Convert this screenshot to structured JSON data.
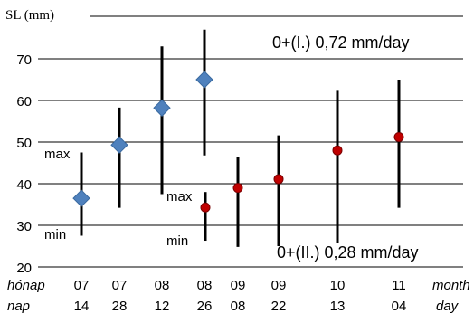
{
  "chart_data": {
    "type": "scatter",
    "ylabel": "SL (mm)",
    "ylim": [
      20,
      77
    ],
    "yticks": [
      20,
      30,
      40,
      50,
      60,
      70
    ],
    "grid": true,
    "x_row1_label": "hónap",
    "x_row2_label": "nap",
    "x_row1_unit": "month",
    "x_row2_unit": "day",
    "categories": [
      {
        "month": "07",
        "day": "14"
      },
      {
        "month": "07",
        "day": "28"
      },
      {
        "month": "08",
        "day": "12"
      },
      {
        "month": "08",
        "day": "26"
      },
      {
        "month": "09",
        "day": "08"
      },
      {
        "month": "09",
        "day": "22"
      },
      {
        "month": "10",
        "day": "13"
      },
      {
        "month": "11",
        "day": "04"
      }
    ],
    "series": [
      {
        "name": "0+(I.)  0,72 mm/day",
        "marker": "diamond",
        "color": "#4f81bd",
        "points": [
          {
            "x": "07/14",
            "y": 36.5,
            "min": 27.5,
            "max": 47.5
          },
          {
            "x": "07/28",
            "y": 49.3,
            "min": 34.2,
            "max": 58.3
          },
          {
            "x": "08/12",
            "y": 58.2,
            "min": 37.5,
            "max": 73.0
          },
          {
            "x": "08/26",
            "y": 65.0,
            "min": 46.8,
            "max": 77.0
          }
        ]
      },
      {
        "name": "0+(II.)  0,28 mm/day",
        "marker": "circle",
        "color": "#c00000",
        "points": [
          {
            "x": "08/26",
            "y": 34.3,
            "min": 26.3,
            "max": 38.0
          },
          {
            "x": "09/08",
            "y": 39.0,
            "min": 24.8,
            "max": 46.3
          },
          {
            "x": "09/22",
            "y": 41.1,
            "min": 25.0,
            "max": 51.6
          },
          {
            "x": "10/13",
            "y": 48.0,
            "min": 25.8,
            "max": 62.3
          },
          {
            "x": "11/04",
            "y": 51.2,
            "min": 34.2,
            "max": 65.0
          }
        ]
      }
    ],
    "annotations": [
      {
        "text": "max",
        "series": 0
      },
      {
        "text": "min",
        "series": 0
      },
      {
        "text": "max",
        "series": 1
      },
      {
        "text": "min",
        "series": 1
      }
    ]
  }
}
